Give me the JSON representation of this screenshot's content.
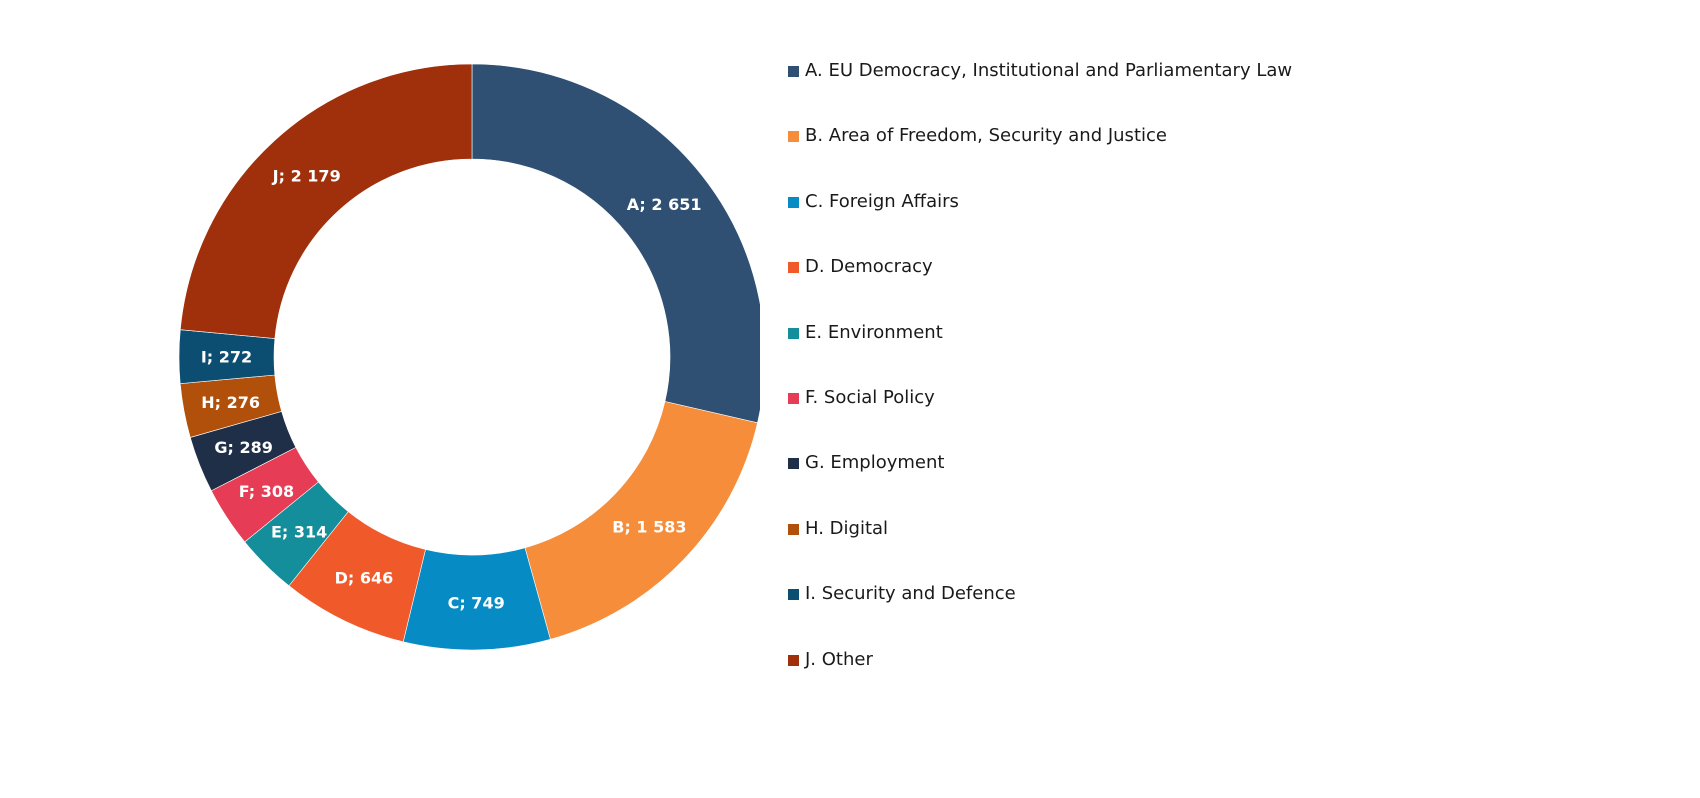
{
  "chart_data": {
    "type": "pie",
    "donut": true,
    "start": "top, clockwise",
    "legend_position": "right",
    "slices": [
      {
        "key": "A",
        "label": "A; 2 651",
        "legend": "A. EU Democracy, Institutional and Parliamentary Law",
        "value": 2651,
        "color": "#2f5072"
      },
      {
        "key": "B",
        "label": "B; 1 583",
        "legend": "B. Area of Freedom, Security and Justice",
        "value": 1583,
        "color": "#f58d3a"
      },
      {
        "key": "C",
        "label": "C; 749",
        "legend": "C. Foreign Affairs",
        "value": 749,
        "color": "#078bc5"
      },
      {
        "key": "D",
        "label": "D; 646",
        "legend": "D. Democracy",
        "value": 646,
        "color": "#f05a2b"
      },
      {
        "key": "E",
        "label": "E; 314",
        "legend": "E. Environment",
        "value": 314,
        "color": "#138e9a"
      },
      {
        "key": "F",
        "label": "F; 308",
        "legend": "F. Social Policy",
        "value": 308,
        "color": "#e63c55"
      },
      {
        "key": "G",
        "label": "G; 289",
        "legend": "G. Employment",
        "value": 289,
        "color": "#1e2f47"
      },
      {
        "key": "H",
        "label": "H; 276",
        "legend": "H. Digital",
        "value": 276,
        "color": "#b0500b"
      },
      {
        "key": "I",
        "label": "I; 272",
        "legend": "I. Security and Defence",
        "value": 272,
        "color": "#0c4e72"
      },
      {
        "key": "J",
        "label": "J; 2 179",
        "legend": "J. Other",
        "value": 2179,
        "color": "#a02f0b"
      }
    ]
  }
}
